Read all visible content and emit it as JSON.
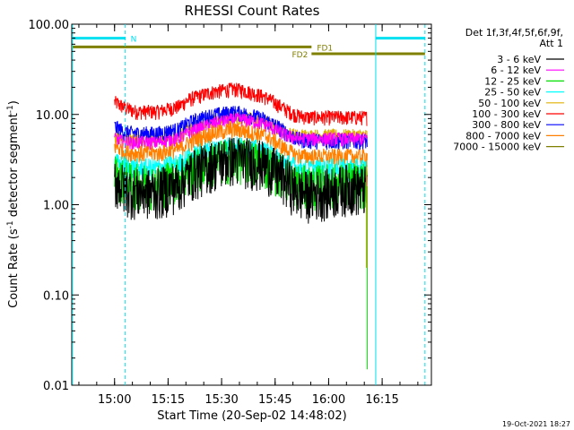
{
  "chart_data": {
    "type": "line",
    "title": "RHESSI Count Rates",
    "xlabel": "Start Time (20-Sep-02 14:48:02)",
    "ylabel": "Count Rate (s",
    "ylabel_sup": "-1",
    "ylabel_tail": " detector segment",
    "ylabel_sup2": "-1",
    "ylabel_close": ")",
    "yscale": "log",
    "ylim": [
      0.01,
      100
    ],
    "xlim_minutes": [
      14.8,
      16.48
    ],
    "xaxis_start": "14:48:02",
    "yticks": [
      {
        "value": 100,
        "label": "100.00"
      },
      {
        "value": 10,
        "label": "10.00"
      },
      {
        "value": 1,
        "label": "1.00"
      },
      {
        "value": 0.1,
        "label": "0.10"
      },
      {
        "value": 0.01,
        "label": "0.01"
      }
    ],
    "xticks": [
      {
        "value": 15.0,
        "label": "15:00"
      },
      {
        "value": 15.25,
        "label": "15:15"
      },
      {
        "value": 15.5,
        "label": "15:30"
      },
      {
        "value": 15.75,
        "label": "15:45"
      },
      {
        "value": 16.0,
        "label": "16:00"
      },
      {
        "value": 16.25,
        "label": "16:15"
      }
    ],
    "legend_title": [
      "Det 1f,3f,4f,5f,6f,9f,",
      "Att 1"
    ],
    "legend_position": "right",
    "series": [
      {
        "name": "3 - 6 keV",
        "color": "#000000",
        "x": [
          15.0,
          15.05,
          15.1,
          15.2,
          15.3,
          15.35,
          15.45,
          15.55,
          15.6,
          15.7,
          15.8,
          15.85,
          15.9,
          16.0,
          16.05,
          16.1,
          16.15,
          16.18
        ],
        "y": [
          2.0,
          1.6,
          1.5,
          1.5,
          1.8,
          2.3,
          3.0,
          3.5,
          3.4,
          3.0,
          2.0,
          1.5,
          1.4,
          1.5,
          1.6,
          1.7,
          1.6,
          1.6
        ]
      },
      {
        "name": "6 - 12 keV",
        "color": "#ff00ff",
        "x": [
          15.0,
          15.05,
          15.1,
          15.2,
          15.3,
          15.35,
          15.45,
          15.55,
          15.6,
          15.7,
          15.8,
          15.85,
          15.9,
          16.0,
          16.05,
          16.1,
          16.15,
          16.18
        ],
        "y": [
          5.5,
          5.0,
          5.0,
          5.0,
          5.5,
          6.5,
          8.0,
          9.0,
          9.0,
          8.0,
          6.0,
          5.5,
          5.5,
          5.5,
          5.5,
          5.5,
          5.5,
          5.5
        ]
      },
      {
        "name": "12 - 25 keV",
        "color": "#00e000",
        "x": [
          15.0,
          15.05,
          15.1,
          15.2,
          15.3,
          15.35,
          15.45,
          15.55,
          15.6,
          15.7,
          15.8,
          15.85,
          15.9,
          16.0,
          16.05,
          16.1,
          16.15,
          16.18
        ],
        "y": [
          2.3,
          1.9,
          1.8,
          1.8,
          2.1,
          2.5,
          3.1,
          3.5,
          3.4,
          3.0,
          2.2,
          1.8,
          1.7,
          1.8,
          1.8,
          1.9,
          1.8,
          1.8
        ]
      },
      {
        "name": "25 - 50 keV",
        "color": "#00ffff",
        "x": [
          15.0,
          15.05,
          15.1,
          15.2,
          15.3,
          15.35,
          15.45,
          15.55,
          15.6,
          15.7,
          15.8,
          15.85,
          15.9,
          16.0,
          16.05,
          16.1,
          16.15,
          16.18
        ],
        "y": [
          3.0,
          2.7,
          2.6,
          2.6,
          2.9,
          3.4,
          4.2,
          4.6,
          4.5,
          4.0,
          3.0,
          2.6,
          2.5,
          2.6,
          2.6,
          2.6,
          2.6,
          2.6
        ]
      },
      {
        "name": "50 - 100 keV",
        "color": "#e0b000",
        "x": [
          15.0,
          15.05,
          15.1,
          15.2,
          15.3,
          15.35,
          15.45,
          15.55,
          15.6,
          15.7,
          15.8,
          15.85,
          15.9,
          16.0,
          16.05,
          16.1,
          16.15,
          16.18
        ],
        "y": [
          6.0,
          5.5,
          5.5,
          5.5,
          6.0,
          7.0,
          8.5,
          9.5,
          9.5,
          8.5,
          6.5,
          6.0,
          6.0,
          6.0,
          6.0,
          6.0,
          6.0,
          6.0
        ]
      },
      {
        "name": "100 - 300 keV",
        "color": "#ff0000",
        "x": [
          15.0,
          15.05,
          15.1,
          15.2,
          15.3,
          15.35,
          15.45,
          15.55,
          15.6,
          15.7,
          15.8,
          15.85,
          15.9,
          16.0,
          16.05,
          16.1,
          16.15,
          16.18
        ],
        "y": [
          14.0,
          12.0,
          11.0,
          11.0,
          12.5,
          15.0,
          18.0,
          19.5,
          19.0,
          16.0,
          11.5,
          10.0,
          9.5,
          9.5,
          9.5,
          9.5,
          9.5,
          9.5
        ]
      },
      {
        "name": "300 - 800 keV",
        "color": "#0000ff",
        "x": [
          15.0,
          15.05,
          15.1,
          15.2,
          15.3,
          15.35,
          15.45,
          15.55,
          15.6,
          15.7,
          15.8,
          15.85,
          15.9,
          16.0,
          16.05,
          16.1,
          16.15,
          16.18
        ],
        "y": [
          7.5,
          6.5,
          6.3,
          6.3,
          7.0,
          8.3,
          10.0,
          10.8,
          10.5,
          9.0,
          6.5,
          5.5,
          5.3,
          5.2,
          5.2,
          5.2,
          5.2,
          5.2
        ]
      },
      {
        "name": "800 - 7000 keV",
        "color": "#ff8000",
        "x": [
          15.0,
          15.05,
          15.1,
          15.2,
          15.3,
          15.35,
          15.45,
          15.55,
          15.6,
          15.7,
          15.8,
          15.85,
          15.9,
          16.0,
          16.05,
          16.1,
          16.15,
          16.18
        ],
        "y": [
          4.6,
          3.9,
          3.8,
          3.8,
          4.2,
          5.0,
          6.3,
          7.0,
          6.8,
          6.0,
          4.2,
          3.6,
          3.5,
          3.5,
          3.5,
          3.5,
          3.5,
          3.5
        ]
      },
      {
        "name": "7000 - 15000 keV",
        "color": "#808000",
        "x": [],
        "y": []
      }
    ],
    "state_bars": [
      {
        "label": "N",
        "color": "#00e0f0",
        "x1": 14.8,
        "x2": 15.05,
        "y": 70,
        "label_side": "end"
      },
      {
        "label": "",
        "color": "#00e0f0",
        "x1": 16.22,
        "x2": 16.45,
        "y": 70,
        "label_side": "none"
      },
      {
        "label": "FD1",
        "color": "#808000",
        "x1": 14.8,
        "x2": 15.92,
        "y": 56,
        "label_side": "end"
      },
      {
        "label": "FD2",
        "color": "#808000",
        "x1": 15.92,
        "x2": 16.45,
        "y": 47,
        "label_side": "start"
      }
    ],
    "vertical_markers": [
      {
        "x": 14.803,
        "color": "#00e0f0",
        "style": "solid"
      },
      {
        "x": 15.05,
        "color": "#00e0f0",
        "style": "dashed"
      },
      {
        "x": 16.22,
        "color": "#00e0f0",
        "style": "solid"
      },
      {
        "x": 16.45,
        "color": "#00e0f0",
        "style": "dashed"
      }
    ],
    "grid": false
  },
  "timestamp": "19-Oct-2021 18:27"
}
